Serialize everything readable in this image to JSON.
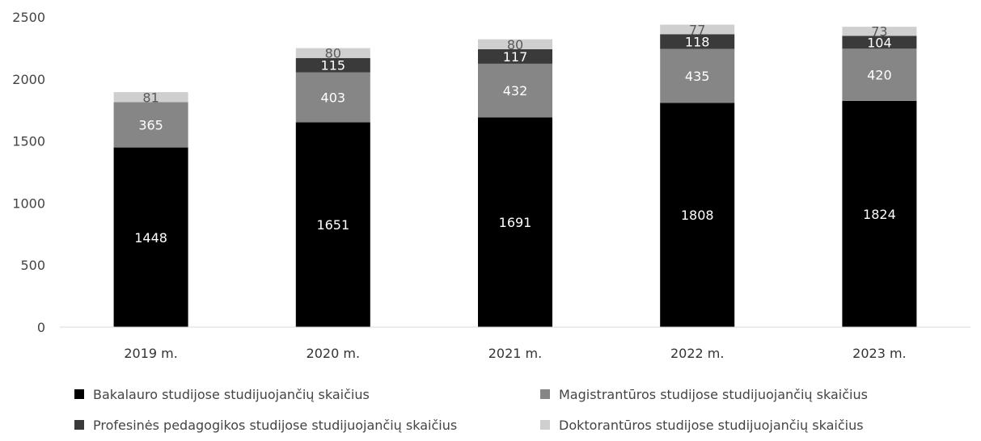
{
  "chart_data": {
    "type": "bar",
    "stacked": true,
    "categories": [
      "2019 m.",
      "2020 m.",
      "2021 m.",
      "2022  m.",
      "2023 m."
    ],
    "series": [
      {
        "name": "Bakalauro studijose studijuojančių skaičius",
        "values": [
          1448,
          1651,
          1691,
          1808,
          1824
        ],
        "color": "#000000",
        "label_color": "#ffffff"
      },
      {
        "name": "Magistrantūros studijose studijuojančių skaičius",
        "values": [
          365,
          403,
          432,
          435,
          420
        ],
        "color": "#868686",
        "label_color": "#ffffff"
      },
      {
        "name": "Profesinės pedagogikos studijose studijuojančių skaičius",
        "values": [
          null,
          115,
          117,
          118,
          104
        ],
        "color": "#3a3a3a",
        "label_color": "#ffffff"
      },
      {
        "name": "Doktorantūros studijose studijuojančių skaičius",
        "values": [
          81,
          80,
          80,
          77,
          73
        ],
        "color": "#cfcfcf",
        "label_color": "#595959"
      }
    ],
    "ylim": [
      0,
      2500
    ],
    "yticks": [
      0,
      500,
      1000,
      1500,
      2000,
      2500
    ],
    "grid": false,
    "legend_position": "bottom"
  }
}
